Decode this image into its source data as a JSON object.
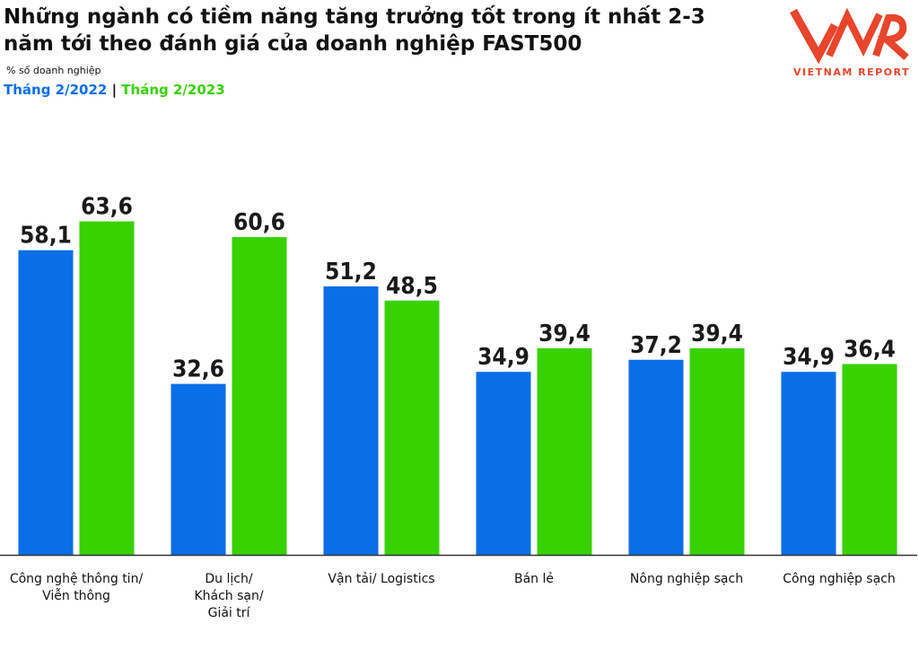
{
  "chart_data": {
    "type": "bar",
    "title": "Những ngành có tiềm năng tăng trưởng tốt trong ít nhất 2-3 năm tới theo đánh giá của doanh nghiệp FAST500",
    "ylabel": "% số doanh nghiệp",
    "categories": [
      "Công nghệ thông tin/\nViễn thông",
      "Du lịch/\nKhách sạn/\nGiải trí",
      "Vận tải/ Logistics",
      "Bán lẻ",
      "Nông nghiệp sạch",
      "Công nghiệp sạch"
    ],
    "series": [
      {
        "name": "Tháng 2/2022",
        "color": "#0a6ee6",
        "values": [
          58.1,
          32.6,
          51.2,
          34.9,
          37.2,
          34.9
        ],
        "labels": [
          "58,1",
          "32,6",
          "51,2",
          "34,9",
          "37,2",
          "34,9"
        ]
      },
      {
        "name": "Tháng 2/2023",
        "color": "#37d200",
        "values": [
          63.6,
          60.6,
          48.5,
          39.4,
          39.4,
          36.4
        ],
        "labels": [
          "63,6",
          "60,6",
          "48,5",
          "39,4",
          "39,4",
          "36,4"
        ]
      }
    ],
    "legend_separator": "|",
    "ylim": [
      0,
      100
    ],
    "grid": false,
    "legend": "top-left"
  },
  "logo": {
    "mark": "VNR",
    "tagline": "VIETNAM REPORT",
    "color": "#e8452c"
  }
}
